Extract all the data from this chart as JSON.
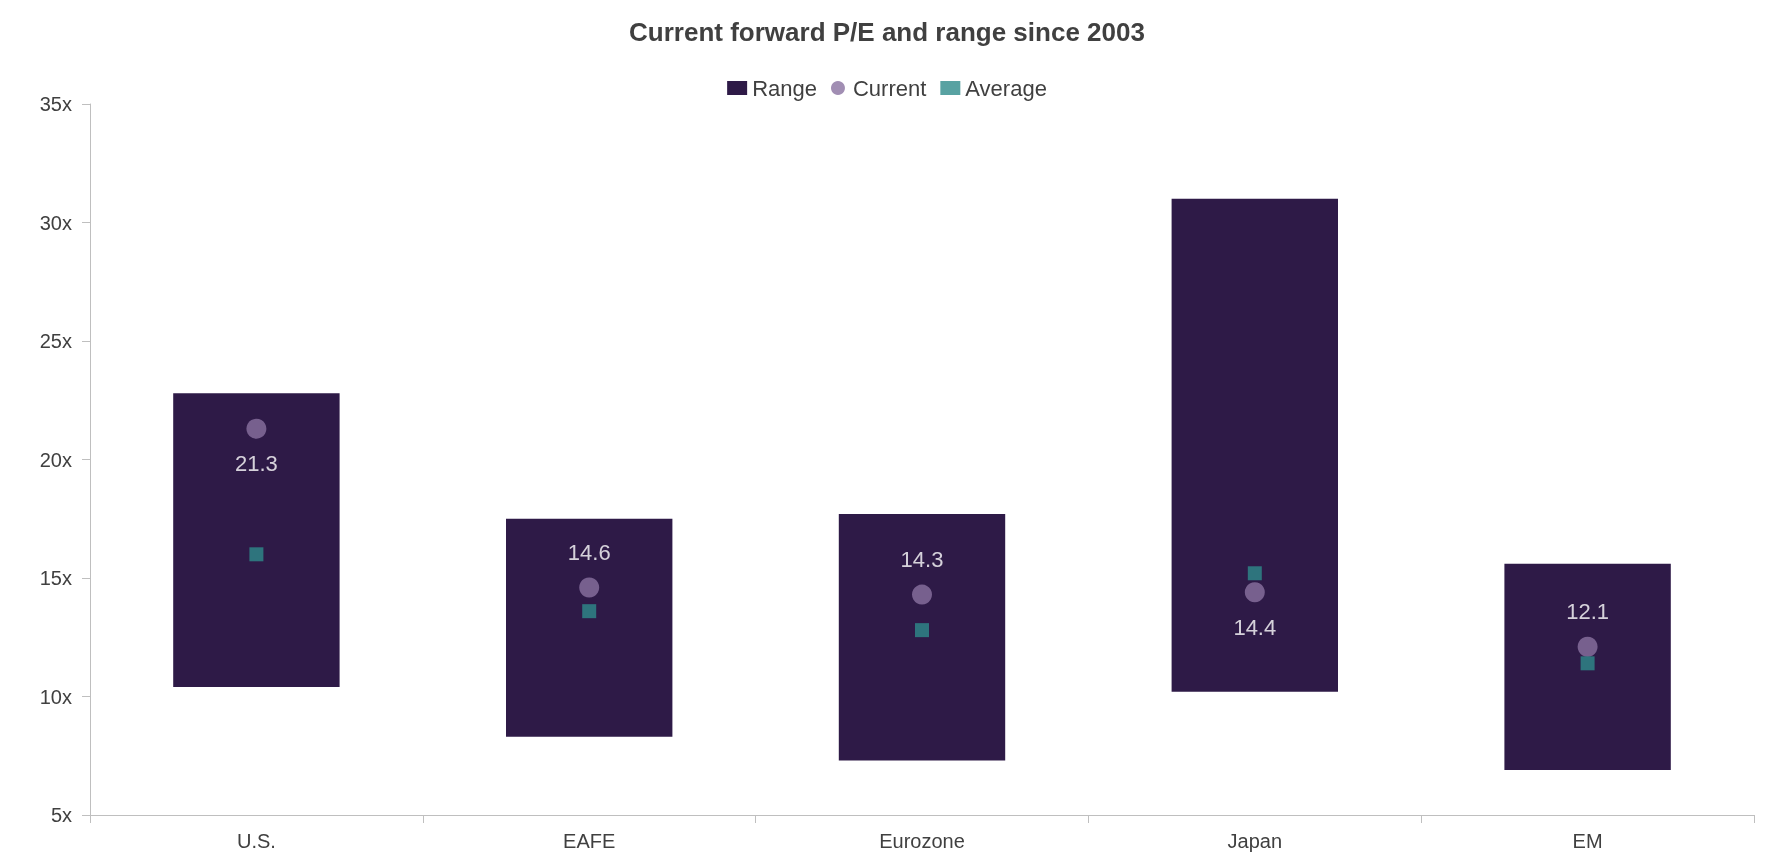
{
  "chart_data": {
    "type": "bar",
    "title": "Current forward P/E and range since 2003",
    "categories": [
      "U.S.",
      "EAFE",
      "Eurozone",
      "Japan",
      "EM"
    ],
    "series": [
      {
        "name": "Range",
        "type": "bar",
        "color": "#2e1a47",
        "base": [
          10.4,
          8.3,
          7.3,
          10.2,
          6.9
        ],
        "values": [
          12.4,
          9.2,
          10.4,
          20.8,
          8.7
        ]
      },
      {
        "name": "Current",
        "type": "scatter",
        "marker": "circle",
        "color": "#8a72a0",
        "values": [
          21.3,
          14.6,
          14.3,
          14.4,
          12.1
        ],
        "data_labels": true
      },
      {
        "name": "Average",
        "type": "scatter",
        "marker": "square",
        "color": "#2e8b8b",
        "values": [
          16.0,
          13.6,
          12.8,
          15.2,
          11.4
        ]
      }
    ],
    "ylim": [
      5,
      35
    ],
    "yticks": [
      {
        "value": 5,
        "label": "5x"
      },
      {
        "value": 10,
        "label": "10x"
      },
      {
        "value": 15,
        "label": "15x"
      },
      {
        "value": 20,
        "label": "20x"
      },
      {
        "value": 25,
        "label": "25x"
      },
      {
        "value": 30,
        "label": "30x"
      },
      {
        "value": 35,
        "label": "35x"
      }
    ],
    "grid": false,
    "legend": "top"
  }
}
